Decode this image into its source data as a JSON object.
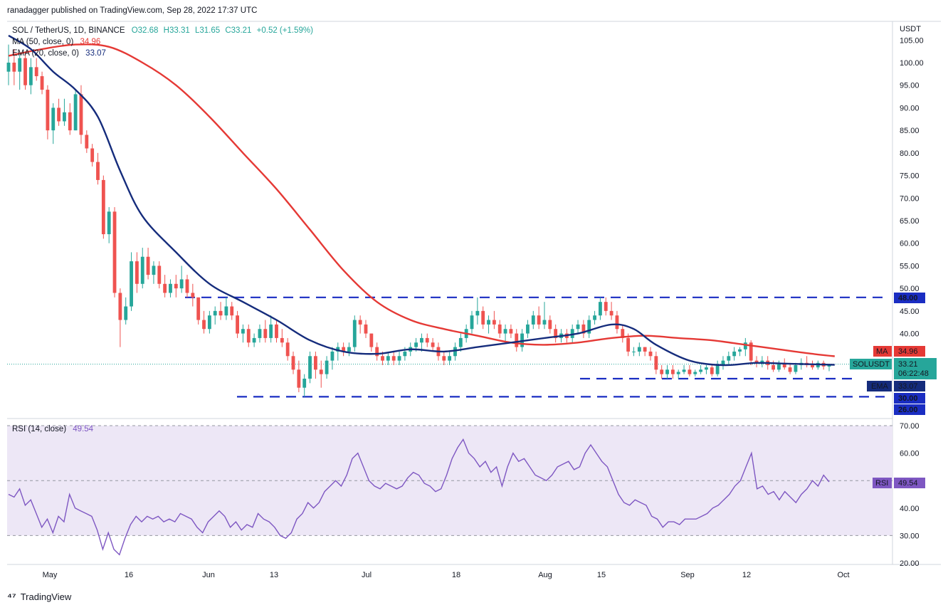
{
  "publisher_line": "ranadagger published on TradingView.com, Sep 28, 2022 17:37 UTC",
  "legend": {
    "symbol": "SOL / TetherUS, 1D, BINANCE",
    "ohlc": "O32.68 H33.31 L31.65 C33.21 +0.52 (+1.59%)",
    "o": "O32.68",
    "h": "H33.31",
    "l": "L31.65",
    "c": "C33.21",
    "chg": "+0.52 (+1.59%)",
    "ma_label": "MA (50, close, 0)",
    "ma_value": "34.96",
    "ema_label": "EMA (20, close, 0)",
    "ema_value": "33.07",
    "rsi_label": "RSI (14, close)",
    "rsi_value": "49.54"
  },
  "price_axis": {
    "currency": "USDT",
    "ticks": [
      "105.00",
      "100.00",
      "95.00",
      "90.00",
      "85.00",
      "80.00",
      "75.00",
      "70.00",
      "65.00",
      "60.00",
      "55.00",
      "50.00",
      "45.00",
      "40.00",
      "35.00",
      "30.00",
      "26.00"
    ]
  },
  "rsi_axis": {
    "ticks": [
      "70.00",
      "60.00",
      "50.00",
      "40.00",
      "30.00",
      "20.00"
    ]
  },
  "x_axis": {
    "labels": [
      "May",
      "16",
      "Jun",
      "13",
      "Jul",
      "18",
      "Aug",
      "15",
      "Sep",
      "12",
      "Oct"
    ]
  },
  "badges": {
    "level_48": "48.00",
    "ma": {
      "label": "MA",
      "value": "34.96"
    },
    "last": {
      "label": "SOLUSDT",
      "value": "33.21",
      "countdown": "06:22:48"
    },
    "ema": {
      "label": "EMA",
      "value": "33.07"
    },
    "level_30": "30.00",
    "level_26": "26.00",
    "rsi": {
      "label": "RSI",
      "value": "49.54"
    }
  },
  "brand": "TradingView",
  "colors": {
    "up": "#26a69a",
    "down": "#ef5350",
    "ma": "#e53935",
    "ema": "#152c7c",
    "rsi": "#7e57c2",
    "level": "#1a2dc2",
    "rsi_fill": "#ede7f6"
  },
  "chart_data": {
    "type": "candlestick",
    "symbol": "SOL / TetherUS",
    "interval": "1D",
    "ylim": [
      23,
      107
    ],
    "horizontal_levels": [
      48,
      30,
      26
    ],
    "candles": [
      {
        "o": 98,
        "h": 104,
        "l": 95,
        "c": 100
      },
      {
        "o": 100,
        "h": 103,
        "l": 95,
        "c": 98
      },
      {
        "o": 98,
        "h": 102,
        "l": 94,
        "c": 101
      },
      {
        "o": 101,
        "h": 102,
        "l": 94,
        "c": 95
      },
      {
        "o": 95,
        "h": 101,
        "l": 93,
        "c": 99
      },
      {
        "o": 99,
        "h": 101,
        "l": 96,
        "c": 97
      },
      {
        "o": 97,
        "h": 98,
        "l": 93,
        "c": 94
      },
      {
        "o": 94,
        "h": 95,
        "l": 83,
        "c": 85
      },
      {
        "o": 85,
        "h": 91,
        "l": 82,
        "c": 90
      },
      {
        "o": 90,
        "h": 92,
        "l": 86,
        "c": 87
      },
      {
        "o": 87,
        "h": 92,
        "l": 86,
        "c": 89
      },
      {
        "o": 89,
        "h": 91,
        "l": 84,
        "c": 85
      },
      {
        "o": 85,
        "h": 94,
        "l": 85,
        "c": 93
      },
      {
        "o": 93,
        "h": 95,
        "l": 82,
        "c": 84
      },
      {
        "o": 84,
        "h": 85,
        "l": 80,
        "c": 81
      },
      {
        "o": 81,
        "h": 82,
        "l": 77,
        "c": 78
      },
      {
        "o": 78,
        "h": 80,
        "l": 73,
        "c": 74
      },
      {
        "o": 74,
        "h": 75,
        "l": 61,
        "c": 62
      },
      {
        "o": 62,
        "h": 68,
        "l": 60,
        "c": 67
      },
      {
        "o": 67,
        "h": 68,
        "l": 48,
        "c": 49
      },
      {
        "o": 49,
        "h": 50,
        "l": 37,
        "c": 43
      },
      {
        "o": 43,
        "h": 48,
        "l": 42,
        "c": 46
      },
      {
        "o": 46,
        "h": 58,
        "l": 45,
        "c": 56
      },
      {
        "o": 56,
        "h": 58,
        "l": 49,
        "c": 51
      },
      {
        "o": 51,
        "h": 59,
        "l": 50,
        "c": 57
      },
      {
        "o": 57,
        "h": 59,
        "l": 52,
        "c": 53
      },
      {
        "o": 53,
        "h": 56,
        "l": 51,
        "c": 55
      },
      {
        "o": 55,
        "h": 56,
        "l": 50,
        "c": 51
      },
      {
        "o": 51,
        "h": 53,
        "l": 48,
        "c": 49
      },
      {
        "o": 49,
        "h": 52,
        "l": 48,
        "c": 51
      },
      {
        "o": 51,
        "h": 53,
        "l": 48,
        "c": 50
      },
      {
        "o": 50,
        "h": 55,
        "l": 49,
        "c": 52
      },
      {
        "o": 52,
        "h": 53,
        "l": 48,
        "c": 49
      },
      {
        "o": 49,
        "h": 51,
        "l": 46,
        "c": 48
      },
      {
        "o": 48,
        "h": 48,
        "l": 42,
        "c": 43
      },
      {
        "o": 43,
        "h": 45,
        "l": 40,
        "c": 41
      },
      {
        "o": 41,
        "h": 45,
        "l": 40,
        "c": 44
      },
      {
        "o": 44,
        "h": 46,
        "l": 42,
        "c": 45
      },
      {
        "o": 45,
        "h": 47,
        "l": 43,
        "c": 44
      },
      {
        "o": 44,
        "h": 48,
        "l": 43,
        "c": 46
      },
      {
        "o": 46,
        "h": 47,
        "l": 43,
        "c": 44
      },
      {
        "o": 44,
        "h": 45,
        "l": 39,
        "c": 40
      },
      {
        "o": 40,
        "h": 42,
        "l": 38,
        "c": 41
      },
      {
        "o": 41,
        "h": 42,
        "l": 37,
        "c": 38
      },
      {
        "o": 38,
        "h": 40,
        "l": 37,
        "c": 39
      },
      {
        "o": 39,
        "h": 42,
        "l": 38,
        "c": 41
      },
      {
        "o": 41,
        "h": 43,
        "l": 38,
        "c": 39
      },
      {
        "o": 39,
        "h": 44,
        "l": 38,
        "c": 42
      },
      {
        "o": 42,
        "h": 43,
        "l": 38,
        "c": 39
      },
      {
        "o": 39,
        "h": 41,
        "l": 37,
        "c": 38
      },
      {
        "o": 38,
        "h": 39,
        "l": 34,
        "c": 35
      },
      {
        "o": 35,
        "h": 36,
        "l": 31,
        "c": 32
      },
      {
        "o": 32,
        "h": 34,
        "l": 27,
        "c": 28
      },
      {
        "o": 28,
        "h": 31,
        "l": 26,
        "c": 30
      },
      {
        "o": 30,
        "h": 36,
        "l": 29,
        "c": 35
      },
      {
        "o": 35,
        "h": 36,
        "l": 30,
        "c": 32
      },
      {
        "o": 32,
        "h": 34,
        "l": 28,
        "c": 31
      },
      {
        "o": 31,
        "h": 35,
        "l": 30,
        "c": 34
      },
      {
        "o": 34,
        "h": 37,
        "l": 32,
        "c": 36
      },
      {
        "o": 36,
        "h": 38,
        "l": 34,
        "c": 37
      },
      {
        "o": 37,
        "h": 38,
        "l": 35,
        "c": 36
      },
      {
        "o": 36,
        "h": 38,
        "l": 35,
        "c": 37
      },
      {
        "o": 37,
        "h": 44,
        "l": 36,
        "c": 43
      },
      {
        "o": 43,
        "h": 44,
        "l": 40,
        "c": 42
      },
      {
        "o": 42,
        "h": 43,
        "l": 39,
        "c": 40
      },
      {
        "o": 40,
        "h": 40,
        "l": 36,
        "c": 37
      },
      {
        "o": 37,
        "h": 38,
        "l": 34,
        "c": 35
      },
      {
        "o": 35,
        "h": 36,
        "l": 33,
        "c": 34
      },
      {
        "o": 34,
        "h": 36,
        "l": 33,
        "c": 35
      },
      {
        "o": 35,
        "h": 36,
        "l": 33,
        "c": 34
      },
      {
        "o": 34,
        "h": 36,
        "l": 33,
        "c": 35
      },
      {
        "o": 35,
        "h": 37,
        "l": 34,
        "c": 36
      },
      {
        "o": 36,
        "h": 38,
        "l": 35,
        "c": 37
      },
      {
        "o": 37,
        "h": 39,
        "l": 36,
        "c": 38
      },
      {
        "o": 38,
        "h": 40,
        "l": 36,
        "c": 39
      },
      {
        "o": 39,
        "h": 40,
        "l": 37,
        "c": 38
      },
      {
        "o": 38,
        "h": 39,
        "l": 36,
        "c": 37
      },
      {
        "o": 37,
        "h": 38,
        "l": 34,
        "c": 35
      },
      {
        "o": 35,
        "h": 36,
        "l": 33,
        "c": 34
      },
      {
        "o": 34,
        "h": 36,
        "l": 33,
        "c": 35
      },
      {
        "o": 35,
        "h": 38,
        "l": 34,
        "c": 37
      },
      {
        "o": 37,
        "h": 40,
        "l": 36,
        "c": 39
      },
      {
        "o": 39,
        "h": 42,
        "l": 38,
        "c": 41
      },
      {
        "o": 41,
        "h": 45,
        "l": 40,
        "c": 44
      },
      {
        "o": 44,
        "h": 48,
        "l": 42,
        "c": 45
      },
      {
        "o": 45,
        "h": 46,
        "l": 41,
        "c": 42
      },
      {
        "o": 42,
        "h": 44,
        "l": 40,
        "c": 43
      },
      {
        "o": 43,
        "h": 45,
        "l": 41,
        "c": 42
      },
      {
        "o": 42,
        "h": 43,
        "l": 39,
        "c": 40
      },
      {
        "o": 40,
        "h": 42,
        "l": 38,
        "c": 41
      },
      {
        "o": 41,
        "h": 42,
        "l": 39,
        "c": 40
      },
      {
        "o": 40,
        "h": 41,
        "l": 36,
        "c": 37
      },
      {
        "o": 37,
        "h": 41,
        "l": 36,
        "c": 40
      },
      {
        "o": 40,
        "h": 43,
        "l": 39,
        "c": 42
      },
      {
        "o": 42,
        "h": 45,
        "l": 41,
        "c": 44
      },
      {
        "o": 44,
        "h": 46,
        "l": 41,
        "c": 42
      },
      {
        "o": 42,
        "h": 47,
        "l": 41,
        "c": 43
      },
      {
        "o": 43,
        "h": 44,
        "l": 40,
        "c": 41
      },
      {
        "o": 41,
        "h": 42,
        "l": 38,
        "c": 39
      },
      {
        "o": 39,
        "h": 41,
        "l": 38,
        "c": 40
      },
      {
        "o": 40,
        "h": 41,
        "l": 38,
        "c": 39
      },
      {
        "o": 39,
        "h": 42,
        "l": 38,
        "c": 41
      },
      {
        "o": 41,
        "h": 43,
        "l": 40,
        "c": 42
      },
      {
        "o": 42,
        "h": 43,
        "l": 39,
        "c": 40
      },
      {
        "o": 40,
        "h": 44,
        "l": 39,
        "c": 43
      },
      {
        "o": 43,
        "h": 45,
        "l": 42,
        "c": 44
      },
      {
        "o": 44,
        "h": 48,
        "l": 43,
        "c": 47
      },
      {
        "o": 47,
        "h": 48,
        "l": 44,
        "c": 45
      },
      {
        "o": 45,
        "h": 47,
        "l": 43,
        "c": 44
      },
      {
        "o": 44,
        "h": 45,
        "l": 40,
        "c": 41
      },
      {
        "o": 41,
        "h": 42,
        "l": 38,
        "c": 39
      },
      {
        "o": 39,
        "h": 40,
        "l": 35,
        "c": 36
      },
      {
        "o": 36,
        "h": 37,
        "l": 35,
        "c": 36
      },
      {
        "o": 36,
        "h": 38,
        "l": 35,
        "c": 37
      },
      {
        "o": 37,
        "h": 37,
        "l": 35,
        "c": 36
      },
      {
        "o": 36,
        "h": 37,
        "l": 34,
        "c": 35
      },
      {
        "o": 35,
        "h": 36,
        "l": 31,
        "c": 32
      },
      {
        "o": 32,
        "h": 33,
        "l": 30,
        "c": 31
      },
      {
        "o": 31,
        "h": 33,
        "l": 30,
        "c": 32
      },
      {
        "o": 32,
        "h": 33,
        "l": 30,
        "c": 31
      },
      {
        "o": 31,
        "h": 32,
        "l": 30,
        "c": 31.5
      },
      {
        "o": 31.5,
        "h": 33,
        "l": 31,
        "c": 32
      },
      {
        "o": 32,
        "h": 33,
        "l": 30.5,
        "c": 31
      },
      {
        "o": 31,
        "h": 32,
        "l": 30.5,
        "c": 31.5
      },
      {
        "o": 31.5,
        "h": 33,
        "l": 31,
        "c": 32
      },
      {
        "o": 32,
        "h": 33,
        "l": 31,
        "c": 32.5
      },
      {
        "o": 32.5,
        "h": 33,
        "l": 30.5,
        "c": 31
      },
      {
        "o": 31,
        "h": 34,
        "l": 30.5,
        "c": 33
      },
      {
        "o": 33,
        "h": 35,
        "l": 32,
        "c": 34
      },
      {
        "o": 34,
        "h": 36,
        "l": 33,
        "c": 35
      },
      {
        "o": 35,
        "h": 37,
        "l": 34,
        "c": 36
      },
      {
        "o": 36,
        "h": 37,
        "l": 35,
        "c": 36.5
      },
      {
        "o": 36.5,
        "h": 39,
        "l": 35,
        "c": 38
      },
      {
        "o": 38,
        "h": 38.5,
        "l": 33,
        "c": 34
      },
      {
        "o": 34,
        "h": 35,
        "l": 32.5,
        "c": 33.5
      },
      {
        "o": 33.5,
        "h": 35,
        "l": 32.5,
        "c": 34
      },
      {
        "o": 34,
        "h": 35,
        "l": 32,
        "c": 33
      },
      {
        "o": 33,
        "h": 34,
        "l": 31.5,
        "c": 32
      },
      {
        "o": 32,
        "h": 34,
        "l": 31.5,
        "c": 33.5
      },
      {
        "o": 33.5,
        "h": 34.5,
        "l": 32,
        "c": 32.5
      },
      {
        "o": 32.5,
        "h": 33.5,
        "l": 31,
        "c": 31.5
      },
      {
        "o": 31.5,
        "h": 33.5,
        "l": 31,
        "c": 33
      },
      {
        "o": 33,
        "h": 34.5,
        "l": 32,
        "c": 33.5
      },
      {
        "o": 33.5,
        "h": 35,
        "l": 32.5,
        "c": 33
      },
      {
        "o": 33,
        "h": 34,
        "l": 32,
        "c": 32.5
      },
      {
        "o": 32.5,
        "h": 34,
        "l": 32,
        "c": 33.5
      },
      {
        "o": 33.5,
        "h": 34,
        "l": 32,
        "c": 32.7
      },
      {
        "o": 32.68,
        "h": 33.31,
        "l": 31.65,
        "c": 33.21
      }
    ],
    "ma50_path": [
      [
        0,
        101.5
      ],
      [
        6,
        103
      ],
      [
        12,
        104
      ],
      [
        18,
        103.5
      ],
      [
        24,
        100
      ],
      [
        30,
        95
      ],
      [
        36,
        88
      ],
      [
        42,
        80
      ],
      [
        48,
        72
      ],
      [
        54,
        63
      ],
      [
        60,
        54
      ],
      [
        66,
        47
      ],
      [
        72,
        43
      ],
      [
        78,
        41
      ],
      [
        84,
        39.5
      ],
      [
        90,
        38
      ],
      [
        96,
        37.5
      ],
      [
        102,
        38
      ],
      [
        108,
        39
      ],
      [
        114,
        39.5
      ],
      [
        120,
        39
      ],
      [
        126,
        38.5
      ],
      [
        132,
        37.5
      ],
      [
        138,
        36.5
      ],
      [
        144,
        35.5
      ],
      [
        148,
        34.96
      ]
    ],
    "ema20_path": [
      [
        0,
        106
      ],
      [
        4,
        103
      ],
      [
        8,
        98
      ],
      [
        12,
        94
      ],
      [
        16,
        88
      ],
      [
        20,
        76
      ],
      [
        24,
        66
      ],
      [
        30,
        58
      ],
      [
        36,
        51
      ],
      [
        42,
        47
      ],
      [
        48,
        43
      ],
      [
        54,
        38.5
      ],
      [
        60,
        36
      ],
      [
        66,
        35.5
      ],
      [
        72,
        36.5
      ],
      [
        78,
        36
      ],
      [
        84,
        37
      ],
      [
        90,
        38
      ],
      [
        96,
        39
      ],
      [
        102,
        40
      ],
      [
        108,
        42
      ],
      [
        112,
        41
      ],
      [
        116,
        37.5
      ],
      [
        122,
        34
      ],
      [
        128,
        33
      ],
      [
        134,
        33.5
      ],
      [
        140,
        33.3
      ],
      [
        148,
        33.07
      ]
    ],
    "rsi": [
      45,
      44,
      47,
      41,
      43,
      38,
      33,
      36,
      31,
      37,
      35,
      45,
      40,
      39,
      38,
      37,
      32,
      25,
      31,
      25,
      23,
      29,
      34,
      37,
      35,
      37,
      36,
      37,
      35,
      36,
      35,
      38,
      37,
      36,
      33,
      31,
      35,
      37,
      39,
      37,
      33,
      35,
      32,
      34,
      33,
      38,
      36,
      35,
      33,
      30,
      29,
      31,
      36,
      38,
      42,
      40,
      42,
      46,
      48,
      50,
      48,
      52,
      58,
      60,
      55,
      50,
      48,
      47,
      49,
      48,
      47,
      48,
      51,
      53,
      52,
      49,
      48,
      46,
      47,
      52,
      58,
      62,
      65,
      60,
      58,
      55,
      57,
      53,
      55,
      48,
      55,
      60,
      57,
      58,
      55,
      52,
      51,
      50,
      52,
      55,
      56,
      57,
      54,
      55,
      60,
      63,
      60,
      57,
      55,
      50,
      45,
      42,
      41,
      43,
      42,
      41,
      37,
      36,
      33,
      35,
      35,
      34,
      36,
      36,
      36,
      37,
      38,
      40,
      41,
      43,
      45,
      48,
      50,
      55,
      60,
      47,
      48,
      45,
      46,
      43,
      46,
      44,
      42,
      45,
      47,
      50,
      48,
      52,
      49.54
    ],
    "rsi_ylim": [
      20,
      72
    ],
    "rsi_band": [
      30,
      70
    ]
  }
}
